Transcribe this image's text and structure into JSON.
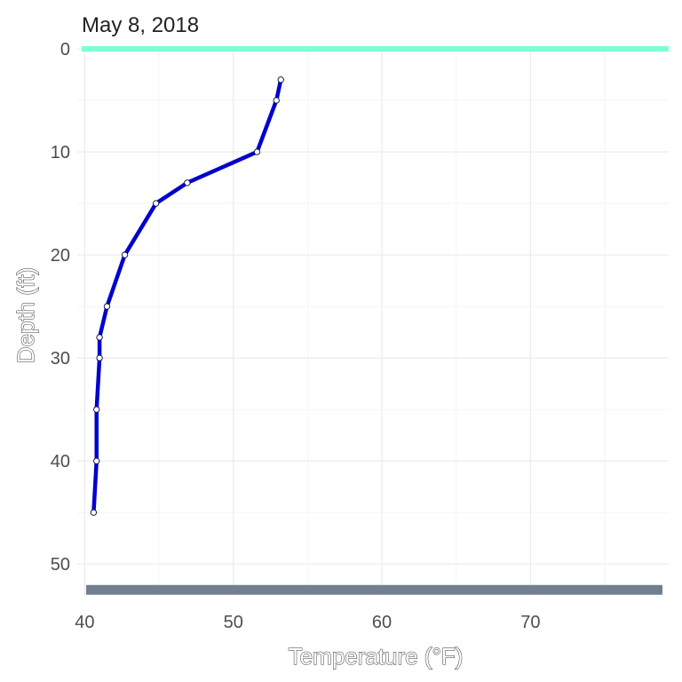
{
  "chart_data": {
    "type": "line",
    "title": "May  8, 2018",
    "xlabel": "Temperature (°F)",
    "ylabel": "Depth (ft)",
    "xlim": [
      39.5,
      79.3
    ],
    "ylim": [
      53.0,
      0.0
    ],
    "y_reversed": true,
    "grid": true,
    "x_ticks": [
      "40",
      "50",
      "60",
      "70"
    ],
    "y_ticks": [
      "0",
      "10",
      "20",
      "30",
      "40",
      "50"
    ],
    "surface_line": {
      "depth": 0,
      "color": "#7fffd4"
    },
    "bottom_line": {
      "depth": 52.5,
      "color": "#708090"
    },
    "series": [
      {
        "color": "#0000cd",
        "points": [
          {
            "temp": 53.2,
            "depth": 3
          },
          {
            "temp": 52.9,
            "depth": 5
          },
          {
            "temp": 51.6,
            "depth": 10
          },
          {
            "temp": 46.9,
            "depth": 13
          },
          {
            "temp": 44.8,
            "depth": 15
          },
          {
            "temp": 42.7,
            "depth": 20
          },
          {
            "temp": 41.5,
            "depth": 25
          },
          {
            "temp": 41.0,
            "depth": 28
          },
          {
            "temp": 41.0,
            "depth": 30
          },
          {
            "temp": 40.8,
            "depth": 35
          },
          {
            "temp": 40.8,
            "depth": 40
          },
          {
            "temp": 40.6,
            "depth": 45
          }
        ]
      }
    ]
  }
}
